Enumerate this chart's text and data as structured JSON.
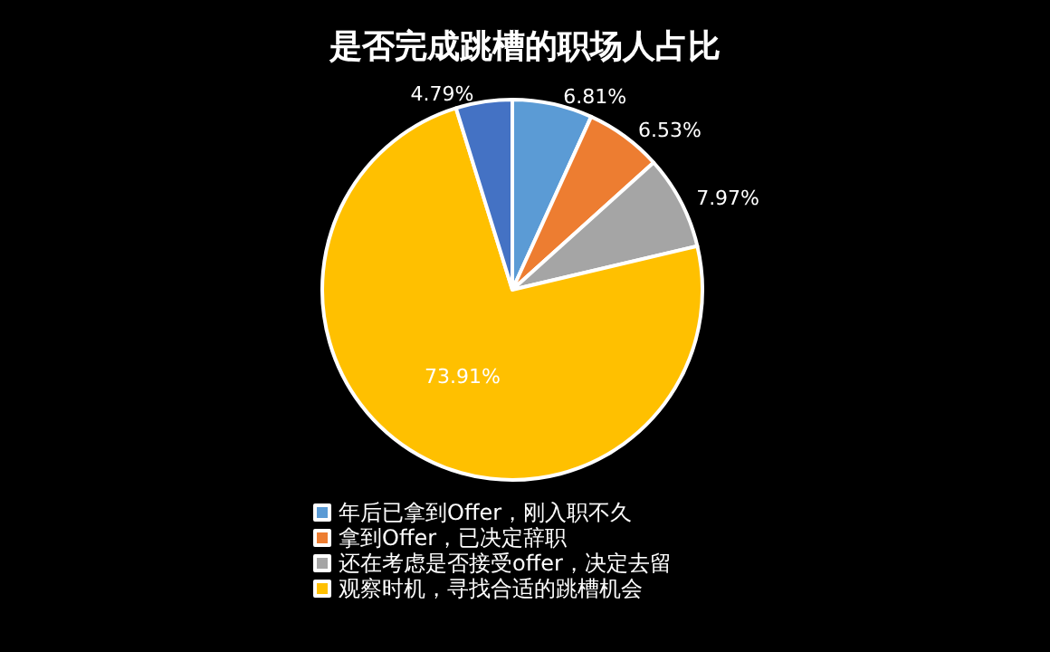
{
  "chart_data": {
    "type": "pie",
    "title": "是否完成跳槽的职场人占比",
    "categories": [
      "年后已拿到Offer，刚入职不久",
      "拿到Offer，已决定辞职",
      "还在考虑是否接受offer，决定去留",
      "观察时机，寻找合适的跳槽机会",
      null
    ],
    "values": [
      6.81,
      6.53,
      7.97,
      73.91,
      4.79
    ],
    "colors": [
      "#5b9bd5",
      "#ed7d31",
      "#a5a5a5",
      "#ffc000",
      "#4472c4"
    ],
    "value_labels": [
      "6.81%",
      "6.53%",
      "7.97%",
      "73.91%",
      "4.79%"
    ],
    "legend": "bottom"
  }
}
